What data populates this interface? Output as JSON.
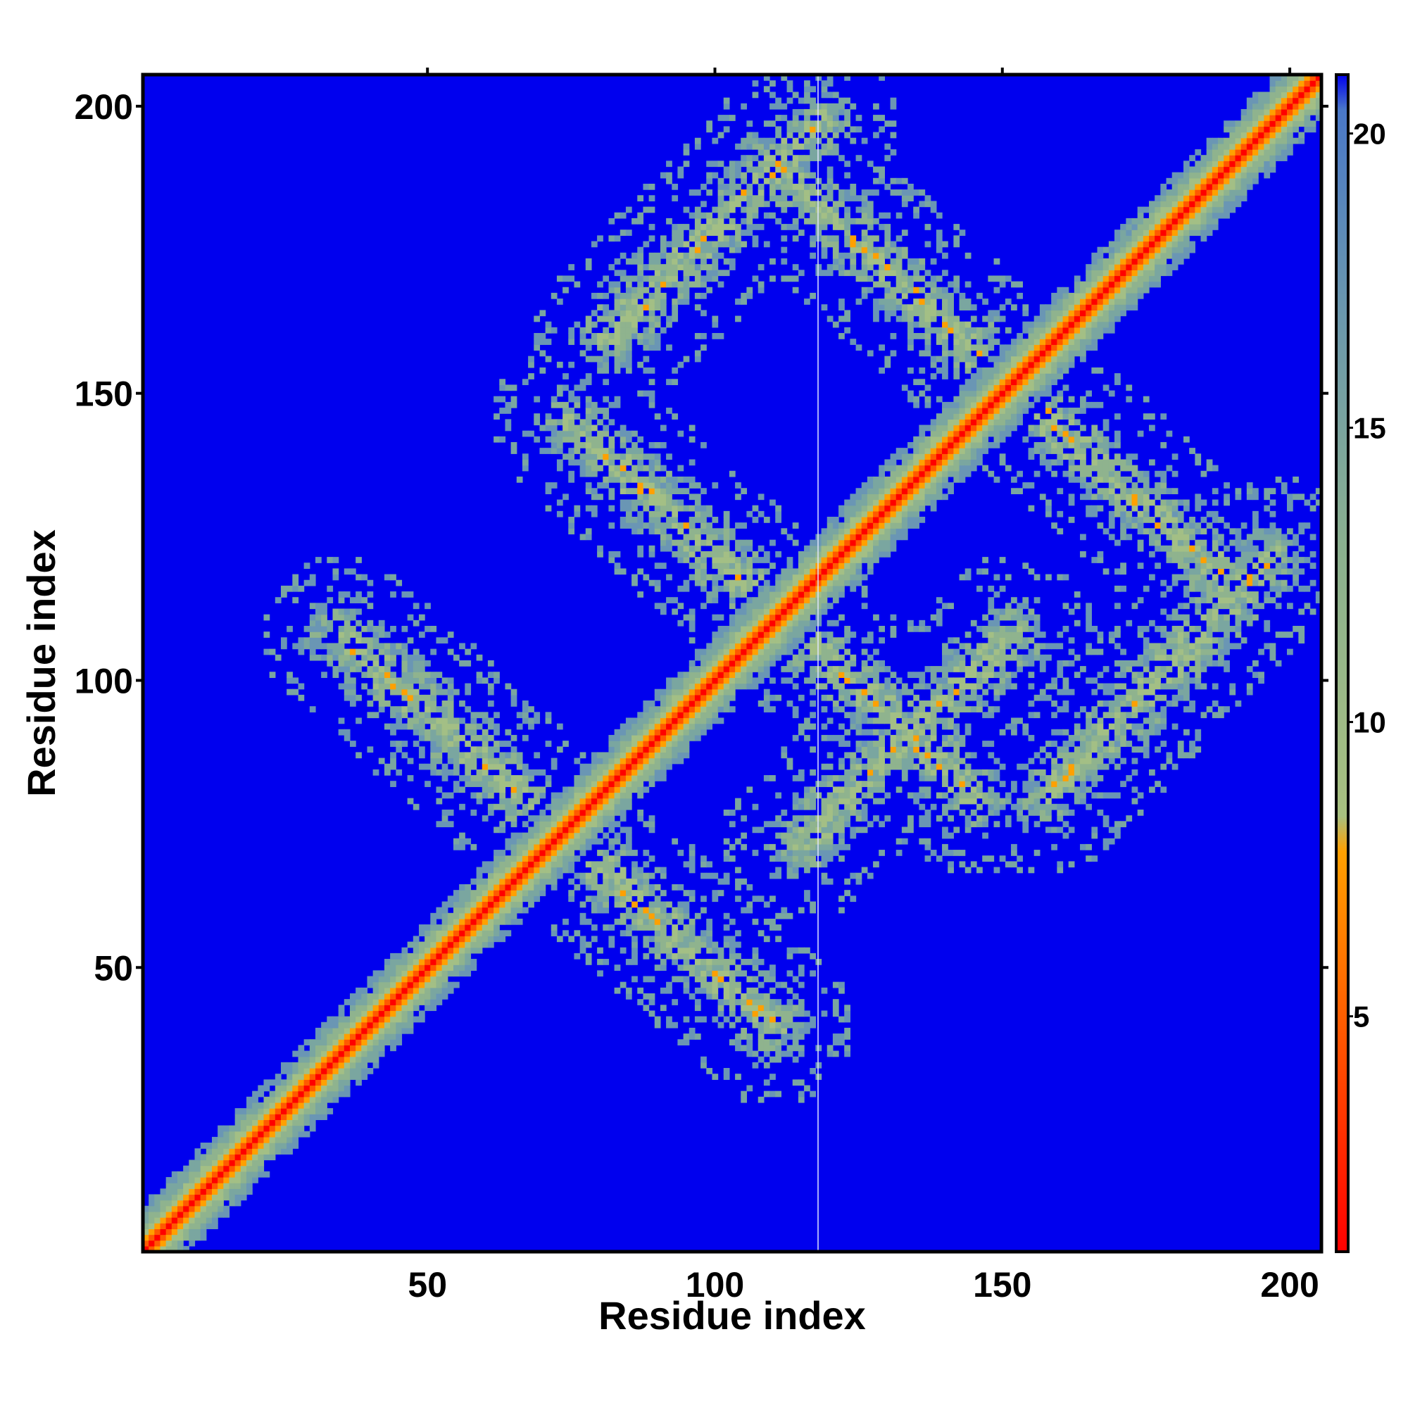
{
  "chart_data": {
    "type": "heatmap",
    "title": "",
    "xlabel": "Residue index",
    "ylabel": "Residue index",
    "x_range": [
      1,
      205
    ],
    "y_range": [
      1,
      205
    ],
    "x_ticks": [
      50,
      100,
      150,
      200
    ],
    "y_ticks": [
      50,
      100,
      150,
      200
    ],
    "colorbar": {
      "range": [
        1,
        21
      ],
      "ticks": [
        5,
        10,
        15,
        20
      ],
      "colors": {
        "low": "#ff0000",
        "mid_low": "#ff8c00",
        "mid": "#9aba86",
        "high": "#5b8fb5",
        "max": "#0000ee"
      }
    },
    "features": {
      "diagonal": {
        "from": 1,
        "to": 205
      },
      "anti_diagonal_bands": [
        {
          "start": [
            35,
            108
          ],
          "end": [
            110,
            40
          ]
        },
        {
          "start": [
            75,
            145
          ],
          "end": [
            145,
            80
          ]
        },
        {
          "start": [
            110,
            190
          ],
          "end": [
            188,
            118
          ]
        }
      ],
      "parallel_bands": [
        {
          "start": [
            82,
            160
          ],
          "end": [
            118,
            197
          ]
        },
        {
          "start": [
            115,
            72
          ],
          "end": [
            152,
            108
          ]
        },
        {
          "start": [
            158,
            80
          ],
          "end": [
            197,
            122
          ]
        }
      ]
    }
  }
}
